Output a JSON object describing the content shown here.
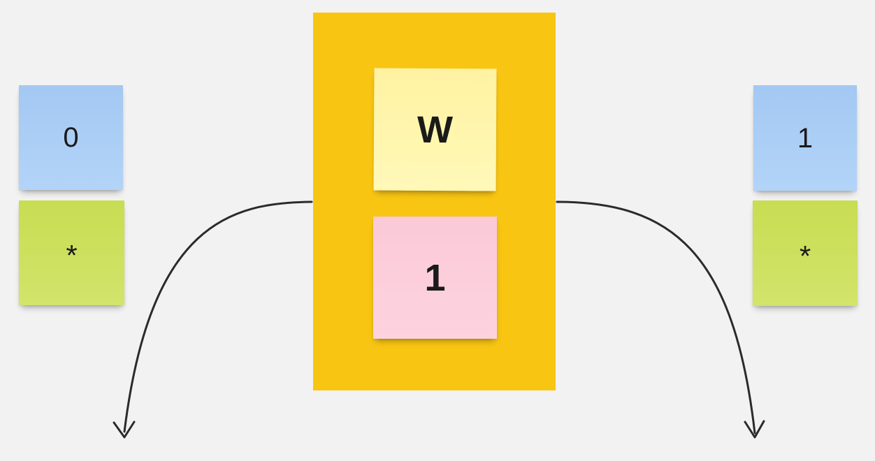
{
  "frame": {
    "color": "#f8c513"
  },
  "center_notes": {
    "top": "W",
    "bottom": "1"
  },
  "left_notes": {
    "top": "0",
    "bottom": "*"
  },
  "right_notes": {
    "top": "1",
    "bottom": "*"
  },
  "colors": {
    "background": "#f2f2f2",
    "blue_note": "#a3c8f2",
    "green_note": "#c8dd52",
    "yellow_note": "#fff2a2",
    "pink_note": "#fbc9d7",
    "arrow": "#2b2b2b"
  }
}
